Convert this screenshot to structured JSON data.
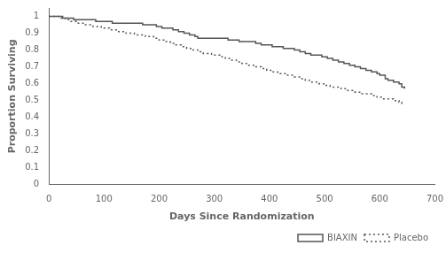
{
  "chart_data": {
    "type": "step",
    "xlabel": "Days Since Randomization",
    "ylabel": "Proportion Surviving",
    "xlim": [
      0,
      700
    ],
    "ylim": [
      0,
      1.05
    ],
    "xticks": [
      0,
      100,
      200,
      300,
      400,
      500,
      600,
      700
    ],
    "yticks": [
      0,
      0.1,
      0.2,
      0.3,
      0.4,
      0.5,
      0.6,
      0.7,
      0.8,
      0.9,
      1
    ],
    "grid": false,
    "legend": "lower right",
    "series": [
      {
        "name": "BIAXIN",
        "color": "#555555",
        "line_style": "solid",
        "x": [
          0,
          15,
          25,
          35,
          45,
          55,
          70,
          85,
          100,
          115,
          130,
          145,
          160,
          170,
          180,
          195,
          205,
          215,
          225,
          235,
          245,
          255,
          265,
          270,
          280,
          290,
          300,
          315,
          325,
          335,
          345,
          355,
          365,
          375,
          385,
          395,
          405,
          415,
          425,
          435,
          445,
          455,
          465,
          475,
          485,
          495,
          505,
          515,
          525,
          535,
          545,
          555,
          565,
          575,
          585,
          595,
          600,
          610,
          615,
          625,
          635,
          640,
          645
        ],
        "values": [
          1.0,
          1.0,
          0.99,
          0.99,
          0.98,
          0.98,
          0.98,
          0.97,
          0.97,
          0.96,
          0.96,
          0.96,
          0.96,
          0.95,
          0.95,
          0.94,
          0.93,
          0.93,
          0.92,
          0.91,
          0.9,
          0.89,
          0.88,
          0.87,
          0.87,
          0.87,
          0.87,
          0.87,
          0.86,
          0.86,
          0.85,
          0.85,
          0.85,
          0.84,
          0.83,
          0.83,
          0.82,
          0.82,
          0.81,
          0.81,
          0.8,
          0.79,
          0.78,
          0.77,
          0.77,
          0.76,
          0.75,
          0.74,
          0.73,
          0.72,
          0.71,
          0.7,
          0.69,
          0.68,
          0.67,
          0.66,
          0.65,
          0.63,
          0.62,
          0.61,
          0.6,
          0.58,
          0.57
        ]
      },
      {
        "name": "Placebo",
        "color": "#555555",
        "line_style": "dotted",
        "x": [
          0,
          10,
          20,
          30,
          40,
          50,
          65,
          80,
          95,
          110,
          125,
          140,
          155,
          165,
          175,
          190,
          200,
          210,
          220,
          230,
          240,
          250,
          260,
          270,
          280,
          295,
          310,
          320,
          330,
          340,
          350,
          360,
          375,
          385,
          395,
          405,
          415,
          430,
          445,
          455,
          465,
          475,
          490,
          500,
          510,
          520,
          530,
          540,
          555,
          565,
          575,
          585,
          595,
          605,
          615,
          625,
          635,
          640
        ],
        "values": [
          1.0,
          1.0,
          0.99,
          0.98,
          0.97,
          0.96,
          0.95,
          0.94,
          0.93,
          0.92,
          0.91,
          0.9,
          0.89,
          0.89,
          0.88,
          0.87,
          0.86,
          0.85,
          0.84,
          0.83,
          0.82,
          0.81,
          0.8,
          0.79,
          0.78,
          0.77,
          0.76,
          0.75,
          0.74,
          0.73,
          0.72,
          0.71,
          0.7,
          0.69,
          0.68,
          0.67,
          0.66,
          0.65,
          0.64,
          0.63,
          0.62,
          0.61,
          0.6,
          0.59,
          0.58,
          0.58,
          0.57,
          0.56,
          0.55,
          0.54,
          0.54,
          0.53,
          0.52,
          0.51,
          0.51,
          0.5,
          0.49,
          0.48
        ]
      }
    ]
  }
}
